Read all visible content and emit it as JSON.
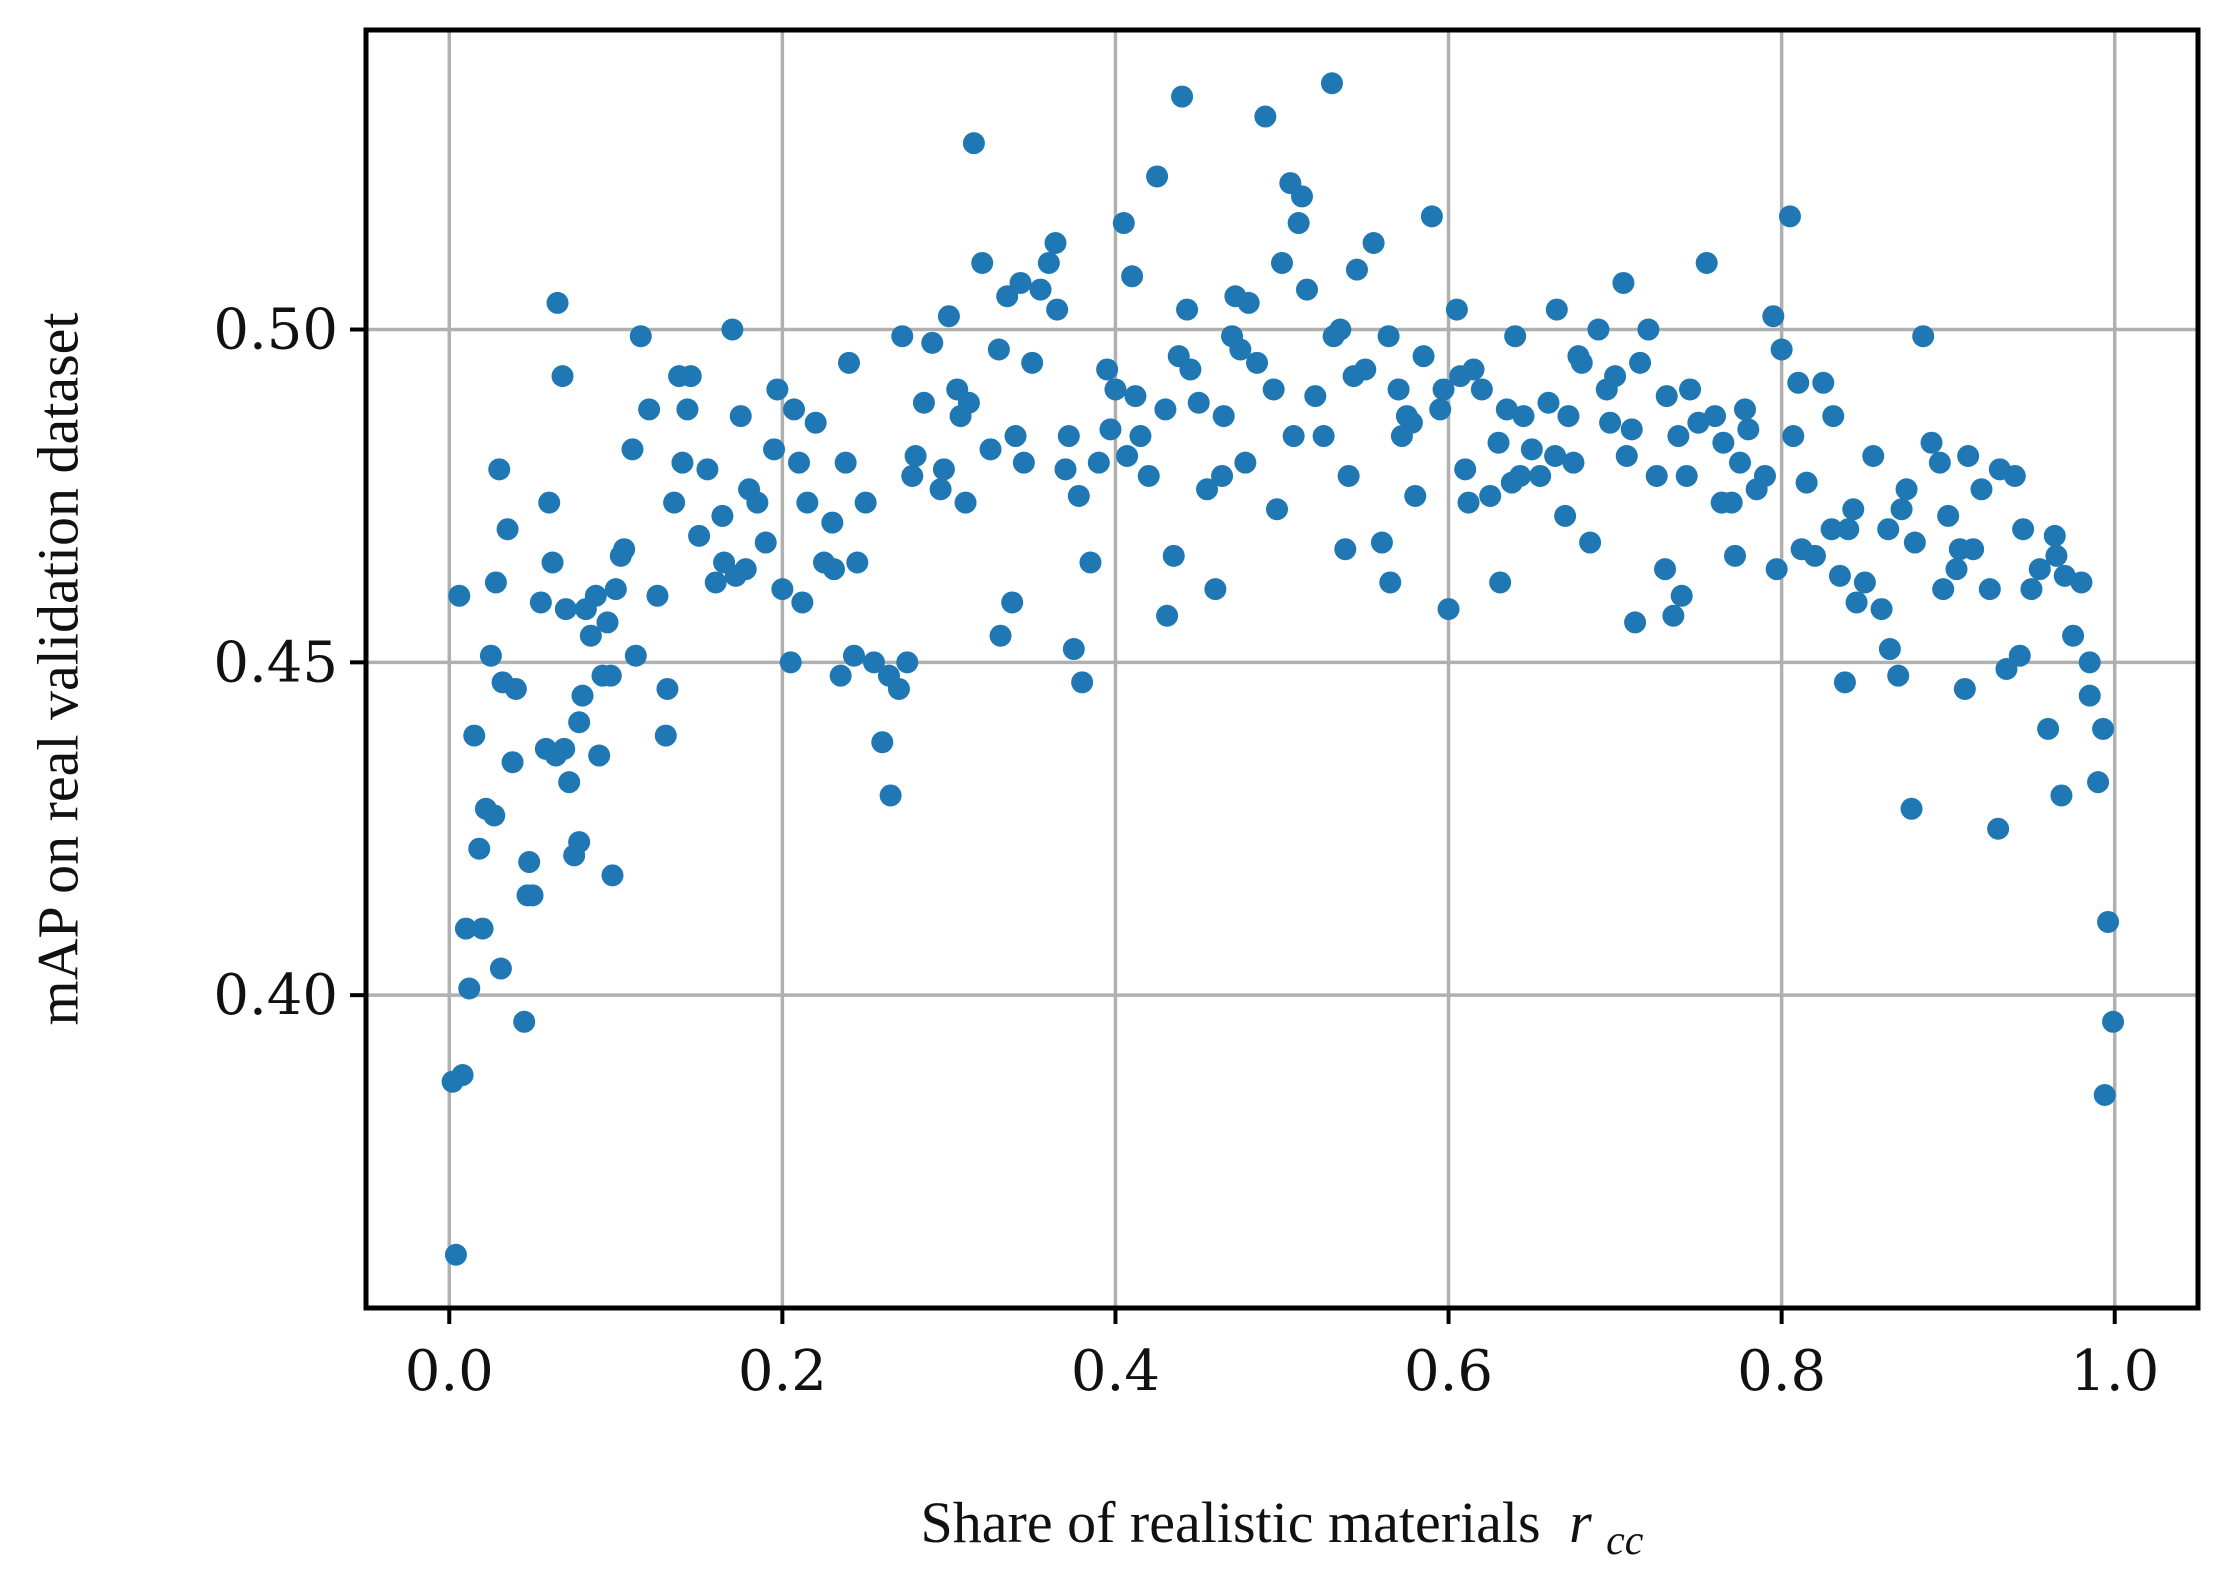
{
  "chart_data": {
    "type": "scatter",
    "xlabel": "Share of realistic materials",
    "xlabel_symbol": "r",
    "xlabel_subscript": "cc",
    "ylabel": "mAP on real validation dataset",
    "xlim": [
      -0.05,
      1.05
    ],
    "ylim": [
      0.353,
      0.545
    ],
    "x_ticks": [
      0.0,
      0.2,
      0.4,
      0.6,
      0.8,
      1.0
    ],
    "x_tick_labels": [
      "0.0",
      "0.2",
      "0.4",
      "0.6",
      "0.8",
      "1.0"
    ],
    "y_ticks": [
      0.4,
      0.45,
      0.5
    ],
    "y_tick_labels": [
      "0.40",
      "0.45",
      "0.50"
    ],
    "grid": true,
    "marker_color": "#1f77b4",
    "points_x": [
      0.002,
      0.004,
      0.008,
      0.01,
      0.012,
      0.015,
      0.018,
      0.02,
      0.022,
      0.025,
      0.028,
      0.03,
      0.032,
      0.035,
      0.038,
      0.04,
      0.045,
      0.048,
      0.05,
      0.055,
      0.058,
      0.06,
      0.062,
      0.065,
      0.068,
      0.07,
      0.072,
      0.075,
      0.078,
      0.08,
      0.082,
      0.085,
      0.088,
      0.09,
      0.092,
      0.095,
      0.098,
      0.1,
      0.105,
      0.11,
      0.115,
      0.12,
      0.125,
      0.13,
      0.135,
      0.14,
      0.145,
      0.15,
      0.155,
      0.16,
      0.165,
      0.17,
      0.175,
      0.18,
      0.185,
      0.19,
      0.195,
      0.2,
      0.205,
      0.21,
      0.215,
      0.22,
      0.225,
      0.23,
      0.235,
      0.24,
      0.245,
      0.25,
      0.255,
      0.26,
      0.265,
      0.27,
      0.275,
      0.28,
      0.285,
      0.29,
      0.295,
      0.3,
      0.305,
      0.31,
      0.315,
      0.32,
      0.325,
      0.33,
      0.335,
      0.34,
      0.345,
      0.35,
      0.355,
      0.36,
      0.365,
      0.37,
      0.375,
      0.38,
      0.385,
      0.39,
      0.395,
      0.4,
      0.405,
      0.41,
      0.415,
      0.42,
      0.425,
      0.43,
      0.435,
      0.44,
      0.445,
      0.45,
      0.455,
      0.46,
      0.465,
      0.47,
      0.475,
      0.48,
      0.485,
      0.49,
      0.495,
      0.5,
      0.505,
      0.51,
      0.515,
      0.52,
      0.525,
      0.53,
      0.535,
      0.54,
      0.545,
      0.55,
      0.555,
      0.56,
      0.565,
      0.57,
      0.575,
      0.58,
      0.585,
      0.59,
      0.595,
      0.6,
      0.605,
      0.61,
      0.615,
      0.62,
      0.625,
      0.63,
      0.635,
      0.64,
      0.645,
      0.65,
      0.655,
      0.66,
      0.665,
      0.67,
      0.675,
      0.68,
      0.685,
      0.69,
      0.695,
      0.7,
      0.705,
      0.71,
      0.715,
      0.72,
      0.725,
      0.73,
      0.735,
      0.74,
      0.745,
      0.75,
      0.755,
      0.76,
      0.765,
      0.77,
      0.775,
      0.78,
      0.785,
      0.79,
      0.795,
      0.8,
      0.805,
      0.81,
      0.815,
      0.82,
      0.825,
      0.83,
      0.835,
      0.84,
      0.845,
      0.85,
      0.855,
      0.86,
      0.865,
      0.87,
      0.875,
      0.88,
      0.885,
      0.89,
      0.895,
      0.9,
      0.905,
      0.91,
      0.915,
      0.92,
      0.925,
      0.93,
      0.935,
      0.94,
      0.945,
      0.95,
      0.955,
      0.96,
      0.965,
      0.97,
      0.975,
      0.98,
      0.985,
      0.99,
      0.993,
      0.996,
      0.999,
      0.031,
      0.064,
      0.097,
      0.131,
      0.164,
      0.197,
      0.231,
      0.264,
      0.297,
      0.331,
      0.364,
      0.397,
      0.431,
      0.464,
      0.497,
      0.531,
      0.564,
      0.597,
      0.631,
      0.664,
      0.697,
      0.731,
      0.764,
      0.797,
      0.831,
      0.864,
      0.897,
      0.931,
      0.964,
      0.985,
      0.047,
      0.078,
      0.112,
      0.143,
      0.178,
      0.212,
      0.243,
      0.278,
      0.312,
      0.343,
      0.378,
      0.412,
      0.443,
      0.478,
      0.512,
      0.543,
      0.578,
      0.612,
      0.643,
      0.678,
      0.712,
      0.743,
      0.778,
      0.812,
      0.843,
      0.878,
      0.912,
      0.943,
      0.968,
      0.994,
      0.006,
      0.027,
      0.069,
      0.103,
      0.138,
      0.172,
      0.207,
      0.238,
      0.272,
      0.307,
      0.338,
      0.372,
      0.407,
      0.438,
      0.472,
      0.507,
      0.538,
      0.572,
      0.607,
      0.638,
      0.672,
      0.707,
      0.738,
      0.772,
      0.807,
      0.838,
      0.872,
      0.907,
      0.938,
      0.972
    ],
    "points_y": [
      0.387,
      0.361,
      0.388,
      0.41,
      0.401,
      0.439,
      0.422,
      0.41,
      0.428,
      0.451,
      0.462,
      0.479,
      0.447,
      0.47,
      0.435,
      0.446,
      0.396,
      0.42,
      0.415,
      0.459,
      0.437,
      0.474,
      0.465,
      0.504,
      0.493,
      0.458,
      0.432,
      0.421,
      0.441,
      0.445,
      0.458,
      0.454,
      0.46,
      0.436,
      0.448,
      0.456,
      0.418,
      0.461,
      0.467,
      0.482,
      0.499,
      0.488,
      0.46,
      0.439,
      0.474,
      0.48,
      0.493,
      0.469,
      0.479,
      0.462,
      0.465,
      0.5,
      0.487,
      0.476,
      0.474,
      0.468,
      0.482,
      0.461,
      0.45,
      0.48,
      0.474,
      0.486,
      0.465,
      0.471,
      0.448,
      0.495,
      0.465,
      0.474,
      0.45,
      0.438,
      0.43,
      0.446,
      0.45,
      0.481,
      0.489,
      0.498,
      0.476,
      0.502,
      0.491,
      0.474,
      0.528,
      0.51,
      0.482,
      0.497,
      0.505,
      0.484,
      0.48,
      0.495,
      0.506,
      0.51,
      0.503,
      0.479,
      0.452,
      0.447,
      0.465,
      0.48,
      0.494,
      0.491,
      0.516,
      0.508,
      0.484,
      0.478,
      0.523,
      0.488,
      0.466,
      0.535,
      0.494,
      0.489,
      0.476,
      0.461,
      0.487,
      0.499,
      0.497,
      0.504,
      0.495,
      0.532,
      0.491,
      0.51,
      0.522,
      0.516,
      0.506,
      0.49,
      0.484,
      0.537,
      0.5,
      0.478,
      0.509,
      0.494,
      0.513,
      0.468,
      0.462,
      0.491,
      0.487,
      0.475,
      0.496,
      0.517,
      0.488,
      0.458,
      0.503,
      0.479,
      0.494,
      0.491,
      0.475,
      0.483,
      0.488,
      0.499,
      0.487,
      0.482,
      0.478,
      0.489,
      0.503,
      0.472,
      0.48,
      0.495,
      0.468,
      0.5,
      0.491,
      0.493,
      0.507,
      0.485,
      0.495,
      0.5,
      0.478,
      0.464,
      0.457,
      0.46,
      0.491,
      0.486,
      0.51,
      0.487,
      0.483,
      0.474,
      0.48,
      0.485,
      0.476,
      0.478,
      0.502,
      0.497,
      0.517,
      0.492,
      0.477,
      0.466,
      0.492,
      0.47,
      0.463,
      0.47,
      0.459,
      0.462,
      0.481,
      0.458,
      0.452,
      0.448,
      0.476,
      0.468,
      0.499,
      0.483,
      0.48,
      0.472,
      0.464,
      0.446,
      0.467,
      0.476,
      0.461,
      0.425,
      0.449,
      0.478,
      0.47,
      0.461,
      0.464,
      0.44,
      0.466,
      0.463,
      0.454,
      0.462,
      0.445,
      0.432,
      0.44,
      0.411,
      0.396,
      0.404,
      0.436,
      0.448,
      0.446,
      0.472,
      0.491,
      0.464,
      0.448,
      0.479,
      0.454,
      0.513,
      0.485,
      0.457,
      0.478,
      0.473,
      0.499,
      0.499,
      0.491,
      0.462,
      0.481,
      0.486,
      0.49,
      0.474,
      0.464,
      0.487,
      0.47,
      0.461,
      0.479,
      0.469,
      0.45,
      0.415,
      0.423,
      0.451,
      0.488,
      0.464,
      0.459,
      0.451,
      0.478,
      0.489,
      0.507,
      0.475,
      0.49,
      0.503,
      0.48,
      0.52,
      0.493,
      0.486,
      0.474,
      0.478,
      0.496,
      0.456,
      0.478,
      0.488,
      0.467,
      0.473,
      0.428,
      0.481,
      0.451,
      0.43,
      0.385,
      0.46,
      0.427,
      0.437,
      0.466,
      0.493,
      0.463,
      0.488,
      0.48,
      0.499,
      0.487,
      0.459,
      0.484,
      0.481,
      0.496,
      0.505,
      0.484,
      0.467,
      0.484,
      0.493,
      0.477,
      0.487,
      0.481,
      0.484,
      0.466,
      0.484,
      0.447,
      0.473,
      0.467
    ]
  }
}
